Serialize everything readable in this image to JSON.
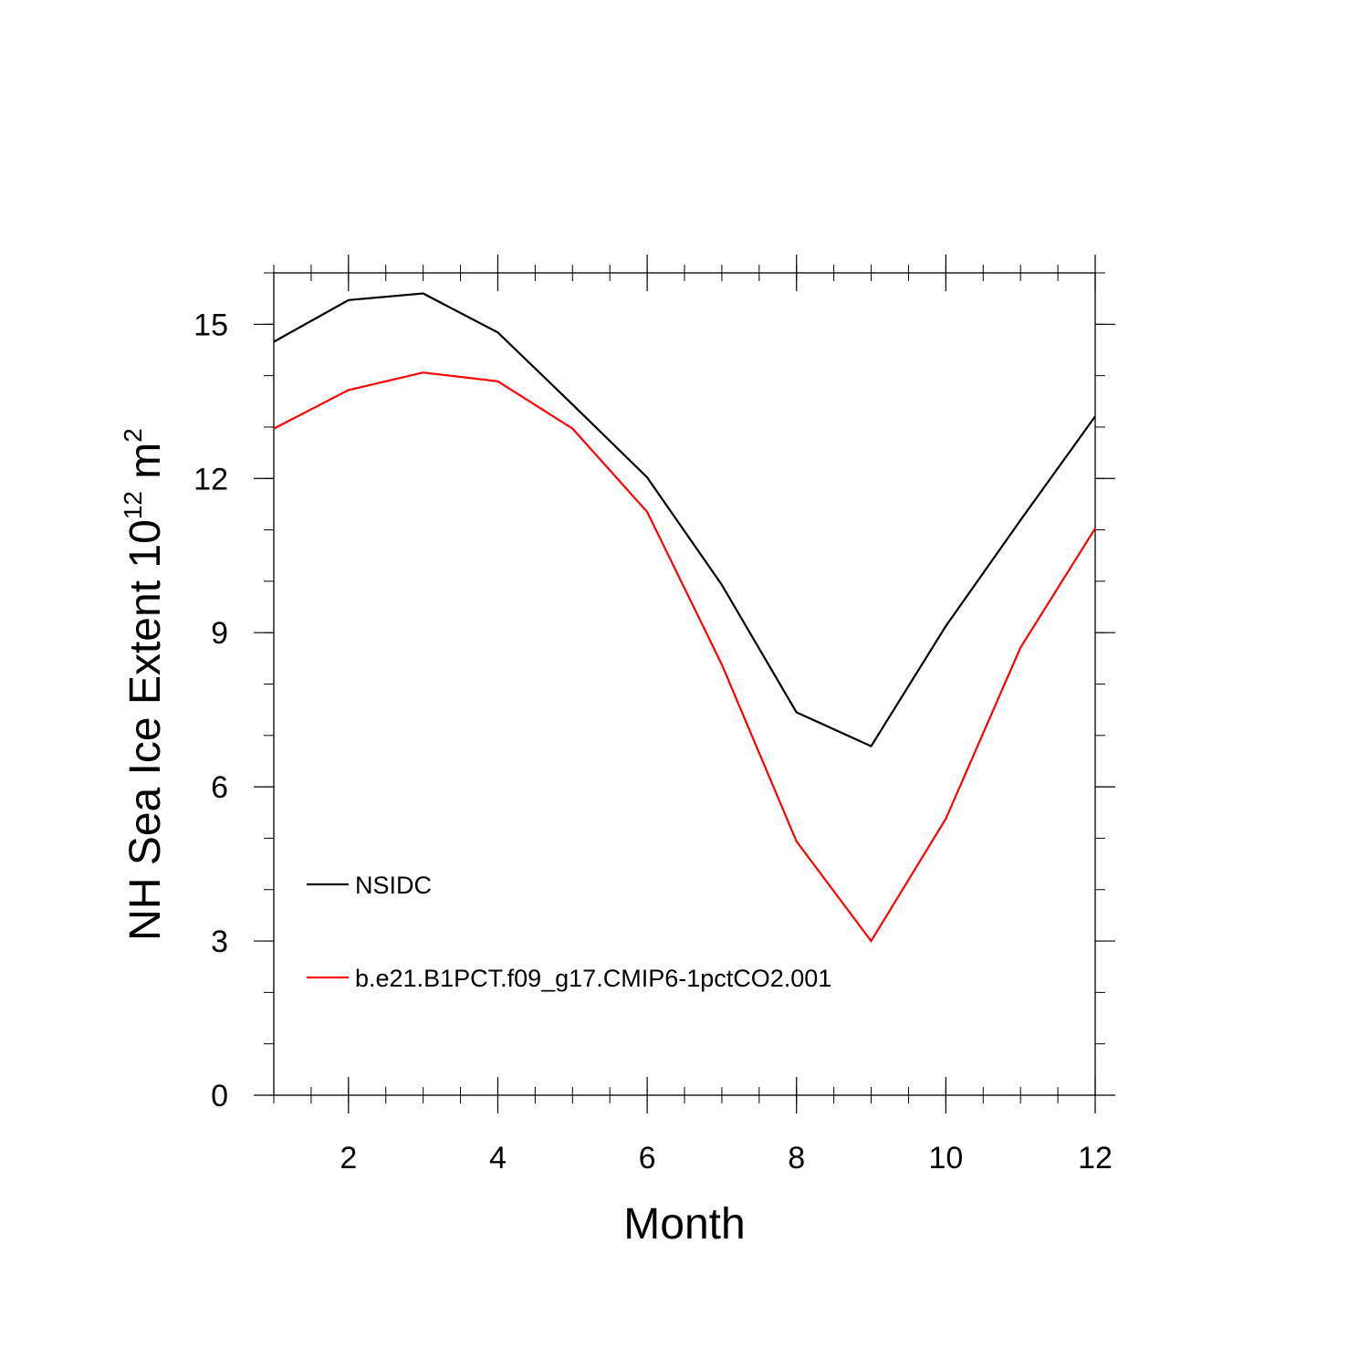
{
  "chart_data": {
    "type": "line",
    "xlabel": "Month",
    "ylabel": "NH Sea Ice Extent 10",
    "ylabel_exponent": "12",
    "ylabel_unit": " m",
    "ylabel_unit_exponent": "2",
    "xlim": [
      1,
      12
    ],
    "ylim": [
      0,
      16
    ],
    "xticks": [
      2,
      4,
      6,
      8,
      10,
      12
    ],
    "yticks": [
      0,
      3,
      6,
      9,
      12,
      15
    ],
    "grid": false,
    "legend_position": "lower-left",
    "x": [
      1,
      2,
      3,
      4,
      5,
      6,
      7,
      8,
      9,
      10,
      11,
      12
    ],
    "series": [
      {
        "name": "NSIDC",
        "color": "#000000",
        "values": [
          14.66,
          15.47,
          15.6,
          14.84,
          13.44,
          12.02,
          9.93,
          7.45,
          6.79,
          9.13,
          11.19,
          13.21
        ]
      },
      {
        "name": "b.e21.B1PCT.f09_g17.CMIP6-1pctCO2.001",
        "color": "#ff0000",
        "values": [
          12.97,
          13.72,
          14.06,
          13.89,
          12.97,
          11.35,
          8.38,
          4.94,
          3.0,
          5.38,
          8.71,
          11.03
        ]
      }
    ]
  }
}
